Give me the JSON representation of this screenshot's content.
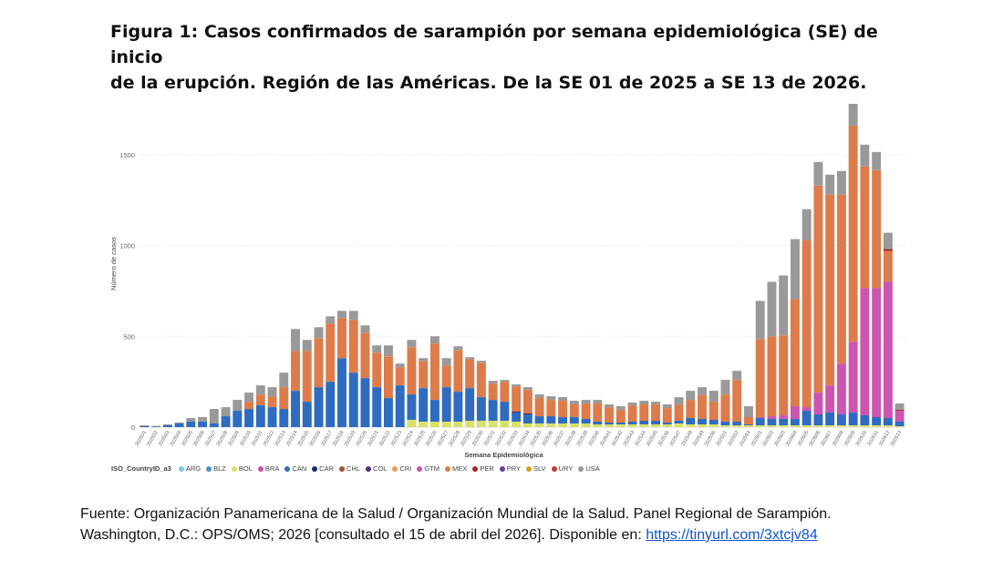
{
  "title_lines": [
    "Figura 1: Casos confirmados de sarampión por semana epidemiológica (SE) de inicio",
    "de la erupción. Región de las Américas. De la SE 01 de 2025 a SE 13 de 2026."
  ],
  "source": {
    "line1": "Fuente: Organización Panamericana de la Salud / Organización Mundial de la Salud. Panel Regional de Sarampión.",
    "line2": "Washington, D.C.: OPS/OMS; 2026 [consultado el 15 de abril del 2026]. Disponible en: ",
    "link_text": "https://tinyurl.com/3xtcjv84"
  },
  "chart_data": {
    "type": "bar",
    "stacked": true,
    "title": "Figura 1: Casos confirmados de sarampión por semana epidemiológica (SE) de inicio de la erupción. Región de las Américas. De la SE 01 de 2025 a SE 13 de 2026.",
    "xlabel": "Semana Epidemiológica",
    "ylabel": "Número de casos",
    "ylim": [
      0,
      1800
    ],
    "yticks": [
      0,
      500,
      1000,
      1500
    ],
    "grid": true,
    "legend_title": "ISO_CountryID_a3",
    "legend_position": "bottom-left",
    "categories": [
      "202501",
      "202502",
      "202503",
      "202504",
      "202505",
      "202506",
      "202507",
      "202508",
      "202509",
      "202510",
      "202511",
      "202512",
      "202513",
      "202514",
      "202515",
      "202516",
      "202517",
      "202518",
      "202519",
      "202520",
      "202521",
      "202522",
      "202523",
      "202524",
      "202525",
      "202526",
      "202527",
      "202528",
      "202529",
      "202530",
      "202531",
      "202532",
      "202533",
      "202534",
      "202535",
      "202536",
      "202537",
      "202538",
      "202539",
      "202540",
      "202541",
      "202542",
      "202543",
      "202544",
      "202545",
      "202546",
      "202547",
      "202548",
      "202549",
      "202550",
      "202551",
      "202552",
      "202553",
      "202601",
      "202602",
      "202603",
      "202604",
      "202605",
      "202606",
      "202607",
      "202608",
      "202609",
      "202610",
      "202611",
      "202612",
      "202613"
    ],
    "series": [
      {
        "name": "ARG",
        "color": "#7ec8e3",
        "values": [
          0,
          0,
          0,
          0,
          0,
          0,
          0,
          0,
          0,
          0,
          0,
          0,
          0,
          0,
          0,
          0,
          0,
          0,
          0,
          0,
          0,
          0,
          0,
          0,
          0,
          0,
          0,
          0,
          0,
          0,
          0,
          0,
          0,
          0,
          0,
          0,
          0,
          0,
          0,
          0,
          0,
          0,
          0,
          0,
          0,
          0,
          0,
          0,
          0,
          0,
          0,
          0,
          0,
          0,
          0,
          0,
          0,
          0,
          0,
          0,
          0,
          0,
          0,
          0,
          0,
          0
        ]
      },
      {
        "name": "BLZ",
        "color": "#4a90d9",
        "values": [
          0,
          0,
          0,
          0,
          0,
          0,
          0,
          0,
          0,
          0,
          0,
          0,
          0,
          0,
          0,
          0,
          0,
          0,
          0,
          0,
          0,
          0,
          0,
          0,
          0,
          0,
          0,
          0,
          0,
          0,
          0,
          0,
          0,
          0,
          0,
          0,
          0,
          0,
          0,
          0,
          0,
          0,
          0,
          0,
          0,
          0,
          0,
          0,
          0,
          0,
          0,
          0,
          0,
          0,
          0,
          0,
          0,
          0,
          0,
          0,
          0,
          0,
          0,
          0,
          0,
          0
        ]
      },
      {
        "name": "BOL",
        "color": "#d9e066",
        "values": [
          0,
          0,
          0,
          0,
          0,
          0,
          0,
          0,
          0,
          0,
          0,
          0,
          0,
          0,
          0,
          0,
          0,
          0,
          0,
          0,
          0,
          0,
          0,
          40,
          30,
          30,
          30,
          30,
          35,
          35,
          35,
          35,
          30,
          20,
          20,
          20,
          20,
          20,
          20,
          15,
          15,
          15,
          15,
          15,
          15,
          15,
          20,
          15,
          15,
          15,
          10,
          10,
          10,
          10,
          10,
          10,
          10,
          10,
          10,
          10,
          10,
          10,
          10,
          10,
          10,
          5
        ]
      },
      {
        "name": "BRA",
        "color": "#c94ea6",
        "values": [
          0,
          0,
          0,
          0,
          0,
          0,
          0,
          0,
          0,
          0,
          0,
          0,
          0,
          0,
          0,
          0,
          0,
          0,
          0,
          0,
          0,
          0,
          0,
          0,
          0,
          0,
          0,
          0,
          0,
          0,
          0,
          0,
          0,
          0,
          0,
          0,
          0,
          0,
          0,
          0,
          0,
          0,
          0,
          0,
          0,
          0,
          0,
          0,
          0,
          0,
          0,
          0,
          0,
          0,
          0,
          0,
          0,
          0,
          0,
          0,
          0,
          0,
          0,
          0,
          0,
          0
        ]
      },
      {
        "name": "CAN",
        "color": "#2f6cc0",
        "values": [
          5,
          2,
          10,
          20,
          30,
          30,
          20,
          60,
          90,
          100,
          120,
          110,
          100,
          200,
          140,
          220,
          250,
          380,
          300,
          270,
          220,
          160,
          230,
          140,
          185,
          120,
          190,
          165,
          180,
          130,
          115,
          105,
          50,
          50,
          40,
          40,
          35,
          35,
          25,
          15,
          10,
          10,
          15,
          20,
          20,
          10,
          15,
          35,
          30,
          25,
          20,
          20,
          5,
          40,
          35,
          35,
          35,
          80,
          60,
          70,
          60,
          70,
          55,
          45,
          40,
          25
        ]
      },
      {
        "name": "CAR",
        "color": "#1a2a6c",
        "values": [
          0,
          0,
          0,
          0,
          0,
          0,
          0,
          0,
          0,
          0,
          0,
          0,
          0,
          0,
          0,
          0,
          0,
          0,
          0,
          0,
          0,
          0,
          0,
          0,
          0,
          0,
          0,
          0,
          0,
          0,
          0,
          0,
          5,
          5,
          0,
          0,
          0,
          0,
          0,
          0,
          0,
          0,
          0,
          0,
          0,
          0,
          0,
          0,
          0,
          0,
          0,
          0,
          0,
          0,
          0,
          0,
          0,
          0,
          0,
          0,
          0,
          0,
          0,
          0,
          0,
          0
        ]
      },
      {
        "name": "CHL",
        "color": "#a0522d",
        "values": [
          0,
          0,
          0,
          0,
          0,
          0,
          0,
          0,
          0,
          0,
          0,
          0,
          0,
          0,
          0,
          0,
          0,
          0,
          0,
          0,
          0,
          0,
          0,
          0,
          0,
          0,
          0,
          0,
          0,
          0,
          0,
          0,
          0,
          0,
          0,
          0,
          0,
          0,
          0,
          0,
          0,
          0,
          0,
          0,
          0,
          0,
          0,
          0,
          0,
          0,
          0,
          0,
          0,
          0,
          0,
          0,
          0,
          0,
          0,
          0,
          0,
          0,
          0,
          0,
          0,
          0
        ]
      },
      {
        "name": "COL",
        "color": "#4b2e83",
        "values": [
          0,
          0,
          0,
          0,
          0,
          0,
          0,
          0,
          0,
          0,
          0,
          0,
          0,
          0,
          0,
          0,
          0,
          0,
          0,
          0,
          0,
          0,
          0,
          0,
          0,
          0,
          0,
          0,
          0,
          0,
          0,
          0,
          0,
          0,
          0,
          0,
          0,
          0,
          0,
          0,
          0,
          0,
          0,
          0,
          0,
          0,
          0,
          0,
          0,
          0,
          0,
          0,
          0,
          0,
          0,
          0,
          0,
          0,
          0,
          0,
          0,
          0,
          0,
          0,
          0,
          0
        ]
      },
      {
        "name": "CRI",
        "color": "#e8a05c",
        "values": [
          0,
          0,
          0,
          0,
          0,
          0,
          0,
          0,
          0,
          0,
          0,
          0,
          0,
          0,
          0,
          0,
          0,
          0,
          0,
          0,
          0,
          0,
          0,
          0,
          0,
          0,
          0,
          0,
          0,
          0,
          0,
          0,
          0,
          0,
          0,
          0,
          0,
          0,
          0,
          0,
          0,
          0,
          0,
          0,
          0,
          0,
          0,
          0,
          0,
          0,
          0,
          0,
          0,
          0,
          0,
          0,
          0,
          0,
          0,
          0,
          0,
          0,
          0,
          0,
          0,
          0
        ]
      },
      {
        "name": "GTM",
        "color": "#cc55b0",
        "values": [
          0,
          0,
          0,
          0,
          0,
          0,
          0,
          0,
          0,
          0,
          0,
          0,
          0,
          0,
          0,
          0,
          0,
          0,
          0,
          0,
          0,
          0,
          0,
          0,
          0,
          0,
          0,
          0,
          0,
          0,
          0,
          0,
          0,
          0,
          0,
          0,
          0,
          0,
          0,
          0,
          0,
          0,
          0,
          0,
          0,
          0,
          0,
          0,
          0,
          0,
          0,
          0,
          0,
          5,
          15,
          20,
          70,
          20,
          120,
          150,
          280,
          390,
          700,
          710,
          750,
          60
        ]
      },
      {
        "name": "MEX",
        "color": "#dd7c4a",
        "values": [
          0,
          0,
          0,
          0,
          0,
          0,
          0,
          0,
          0,
          40,
          60,
          60,
          120,
          220,
          280,
          270,
          320,
          220,
          290,
          250,
          190,
          230,
          100,
          260,
          150,
          310,
          120,
          230,
          160,
          190,
          90,
          110,
          140,
          130,
          100,
          90,
          90,
          70,
          85,
          100,
          85,
          70,
          90,
          90,
          90,
          80,
          90,
          100,
          130,
          100,
          150,
          230,
          40,
          430,
          440,
          440,
          590,
          920,
          1140,
          1050,
          930,
          1190,
          670,
          650,
          170,
          0
        ]
      },
      {
        "name": "PER",
        "color": "#b22222",
        "values": [
          0,
          0,
          0,
          0,
          0,
          0,
          0,
          0,
          0,
          0,
          0,
          0,
          0,
          0,
          0,
          0,
          0,
          0,
          0,
          0,
          0,
          0,
          0,
          0,
          0,
          0,
          0,
          0,
          0,
          0,
          0,
          0,
          0,
          0,
          0,
          0,
          0,
          0,
          0,
          0,
          0,
          0,
          0,
          0,
          0,
          0,
          0,
          0,
          0,
          0,
          0,
          0,
          0,
          0,
          0,
          0,
          0,
          0,
          0,
          0,
          0,
          0,
          0,
          0,
          10,
          5
        ]
      },
      {
        "name": "PRY",
        "color": "#6a3d9a",
        "values": [
          0,
          0,
          0,
          0,
          0,
          0,
          0,
          0,
          0,
          0,
          0,
          0,
          0,
          0,
          0,
          0,
          0,
          0,
          0,
          0,
          0,
          0,
          0,
          0,
          0,
          0,
          0,
          0,
          0,
          0,
          0,
          0,
          0,
          0,
          0,
          0,
          0,
          0,
          0,
          0,
          0,
          0,
          0,
          0,
          0,
          0,
          0,
          0,
          0,
          0,
          0,
          0,
          0,
          0,
          0,
          0,
          0,
          0,
          0,
          0,
          0,
          0,
          0,
          0,
          0,
          0
        ]
      },
      {
        "name": "SLV",
        "color": "#d4a017",
        "values": [
          0,
          0,
          0,
          0,
          0,
          0,
          0,
          0,
          0,
          0,
          0,
          0,
          0,
          0,
          0,
          0,
          0,
          0,
          0,
          0,
          0,
          0,
          0,
          0,
          0,
          0,
          0,
          0,
          0,
          0,
          0,
          0,
          0,
          0,
          0,
          0,
          0,
          0,
          0,
          0,
          0,
          0,
          0,
          0,
          0,
          0,
          0,
          0,
          0,
          0,
          0,
          0,
          0,
          0,
          0,
          0,
          0,
          0,
          0,
          0,
          0,
          0,
          0,
          0,
          0,
          0
        ]
      },
      {
        "name": "URY",
        "color": "#c0392b",
        "values": [
          0,
          0,
          0,
          0,
          0,
          0,
          0,
          0,
          0,
          0,
          0,
          0,
          0,
          0,
          0,
          0,
          0,
          0,
          0,
          0,
          0,
          0,
          0,
          0,
          0,
          0,
          0,
          0,
          0,
          0,
          0,
          0,
          0,
          0,
          0,
          0,
          0,
          0,
          0,
          0,
          0,
          0,
          0,
          0,
          0,
          0,
          0,
          0,
          0,
          0,
          0,
          0,
          0,
          0,
          0,
          0,
          0,
          0,
          0,
          0,
          0,
          0,
          0,
          0,
          0,
          0
        ]
      },
      {
        "name": "USA",
        "color": "#999999",
        "values": [
          5,
          5,
          5,
          5,
          20,
          25,
          80,
          50,
          60,
          50,
          50,
          50,
          80,
          120,
          60,
          60,
          40,
          40,
          50,
          40,
          40,
          60,
          20,
          40,
          15,
          40,
          40,
          20,
          10,
          10,
          15,
          10,
          10,
          15,
          20,
          20,
          20,
          20,
          20,
          20,
          15,
          20,
          15,
          20,
          15,
          20,
          40,
          50,
          45,
          60,
          80,
          50,
          60,
          210,
          300,
          330,
          330,
          170,
          130,
          110,
          130,
          120,
          120,
          100,
          90,
          35
        ]
      }
    ]
  }
}
